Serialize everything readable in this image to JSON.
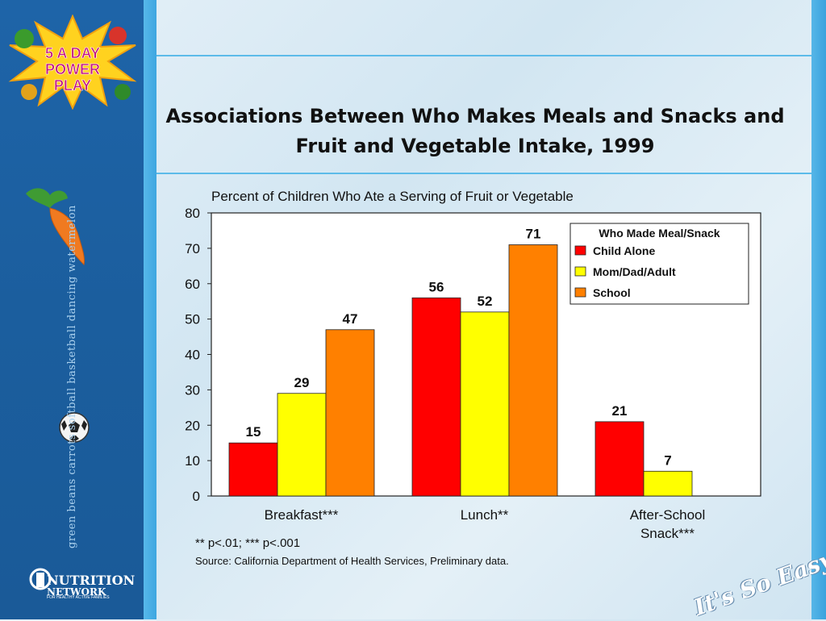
{
  "sidebar": {
    "logo_line1": "5 A DAY",
    "logo_line2": "POWER",
    "logo_line3": "PLAY",
    "vertical_text": "green beans  carrots      softball  basketball  dancing      watermelon",
    "network_logo": "NUTRITION",
    "network_logo2": "NETWORK",
    "network_sub": "FOR HEALTHY ACTIVE FAMILIES"
  },
  "slogan": "It's So Easy.",
  "footnotes": {
    "sig": "** p<.01; *** p<.001",
    "source": "Source: California Department of Health Services, Preliminary data."
  },
  "colors": {
    "child_alone": "#ff0000",
    "mom_dad_adult": "#ffff00",
    "school": "#ff8000"
  },
  "chart_data": {
    "type": "bar",
    "title": "Associations Between Who Makes Meals and Snacks and Fruit and Vegetable Intake, 1999",
    "subtitle": "Percent of Children Who Ate a Serving of Fruit or Vegetable",
    "categories": [
      "Breakfast***",
      "Lunch**",
      "After-School Snack***"
    ],
    "category_lines": [
      [
        "Breakfast***"
      ],
      [
        "Lunch**"
      ],
      [
        "After-School",
        "Snack***"
      ]
    ],
    "series": [
      {
        "name": "Child Alone",
        "values": [
          15,
          56,
          21
        ],
        "color": "#ff0000"
      },
      {
        "name": "Mom/Dad/Adult",
        "values": [
          29,
          52,
          7
        ],
        "color": "#ffff00"
      },
      {
        "name": "School",
        "values": [
          47,
          71,
          null
        ],
        "color": "#ff8000"
      }
    ],
    "legend_title": "Who Made Meal/Snack",
    "legend_position": "top-right",
    "ylim": [
      0,
      80
    ],
    "yticks": [
      0,
      10,
      20,
      30,
      40,
      50,
      60,
      70,
      80
    ],
    "grid": false,
    "data_labels": true
  }
}
